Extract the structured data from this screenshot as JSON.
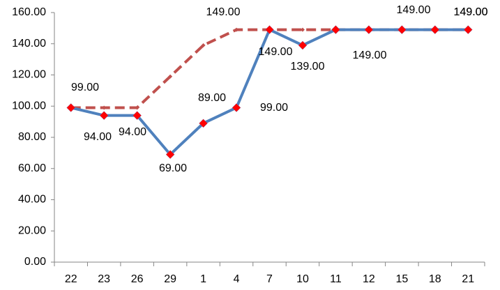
{
  "chart_data": {
    "type": "line",
    "categories": [
      "22",
      "23",
      "26",
      "29",
      "1",
      "4",
      "7",
      "10",
      "11",
      "12",
      "15",
      "18",
      "21"
    ],
    "series": [
      {
        "color": "#4f81bd",
        "marker_color": "#ff0000",
        "values": [
          99,
          94,
          94,
          69,
          89,
          99,
          149,
          139,
          149,
          149,
          149,
          149,
          149
        ],
        "value_labels": [
          "99.00",
          "94.00",
          "94.00",
          "69.00",
          "89.00",
          "99.00",
          "149.00",
          "139.00",
          "149.00",
          "149.00",
          "149.00",
          "149.00",
          "149.00"
        ]
      },
      {
        "color": "#c0504d",
        "dashed": true,
        "values": [
          99,
          99,
          99,
          119,
          139,
          149,
          149,
          149,
          149,
          149,
          149,
          149,
          149
        ]
      }
    ],
    "ylim": [
      0,
      160
    ],
    "yticks": [
      {
        "value": 0,
        "label": "0.00"
      },
      {
        "value": 20,
        "label": "20.00"
      },
      {
        "value": 40,
        "label": "40.00"
      },
      {
        "value": 60,
        "label": "60.00"
      },
      {
        "value": 80,
        "label": "80.00"
      },
      {
        "value": 100,
        "label": "100.00"
      },
      {
        "value": 120,
        "label": "120.00"
      },
      {
        "value": 140,
        "label": "140.00"
      },
      {
        "value": 160,
        "label": "160.00"
      }
    ],
    "grid": false
  }
}
